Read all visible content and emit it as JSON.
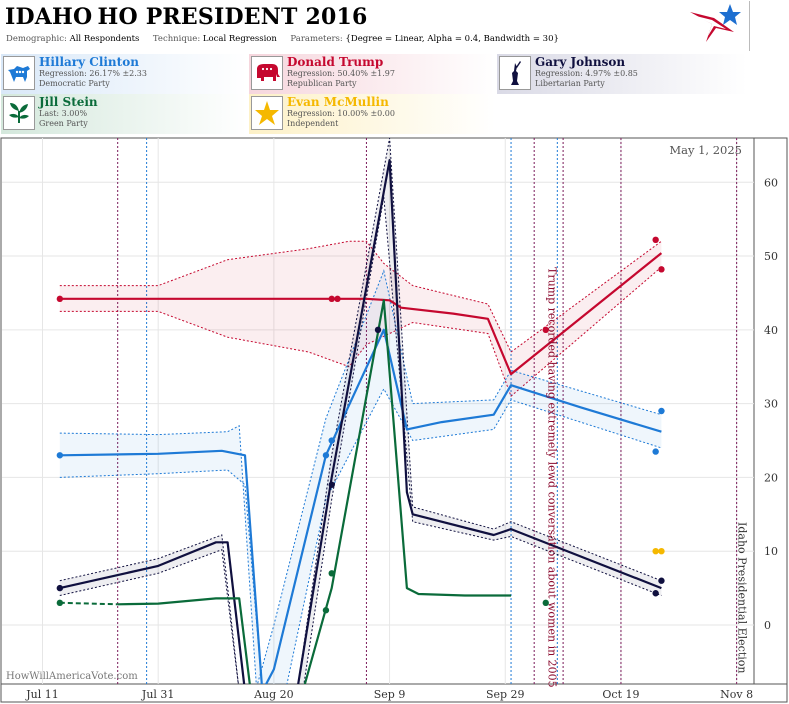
{
  "header": {
    "state": "IDAHO",
    "race": "HO PRESIDENT 2016",
    "demographic_label": "Demographic:",
    "demographic_value": "All Respondents",
    "technique_label": "Technique:",
    "technique_value": "Local Regression",
    "parameters_label": "Parameters:",
    "parameters_value": "{Degree = Linear, Alpha = 0.4, Bandwidth = 30}"
  },
  "candidates": [
    {
      "name": "Hillary Clinton",
      "line1": "Regression: 26.17% ±2.33",
      "line2": "Democratic Party",
      "color": "#1e7ad6",
      "icon": "donkey-icon"
    },
    {
      "name": "Donald Trump",
      "line1": "Regression: 50.40% ±1.97",
      "line2": "Republican Party",
      "color": "#c5082f",
      "icon": "elephant-icon"
    },
    {
      "name": "Gary Johnson",
      "line1": "Regression: 4.97% ±0.85",
      "line2": "Libertarian Party",
      "color": "#10103f",
      "icon": "liberty-statue-icon"
    },
    {
      "name": "Jill Stein",
      "line1": "Last: 3.00%",
      "line2": "Green Party",
      "color": "#0a6b3a",
      "icon": "leaf-icon"
    },
    {
      "name": "Evan McMullin",
      "line1": "Regression: 10.00% ±0.00",
      "line2": "Independent",
      "color": "#f5b800",
      "icon": "star-icon"
    }
  ],
  "chart_data": {
    "type": "line",
    "date_label": "May 1, 2025",
    "watermark": "HowWillAmericaVote.com",
    "x_ticks": [
      "Jul 11",
      "Jul 31",
      "Aug 20",
      "Sep 9",
      "Sep 29",
      "Oct 19",
      "Nov 8"
    ],
    "y_ticks": [
      0,
      10,
      20,
      30,
      40,
      50,
      60
    ],
    "ylim": [
      -8,
      66
    ],
    "xlim": [
      "2016-07-04",
      "2016-11-11"
    ],
    "annotations": [
      {
        "date": "2016-10-07",
        "text": "Trump recorded having extremely lewd conversation about women in 2005"
      },
      {
        "date": "2016-11-08",
        "text": "Idaho Presidential Election"
      }
    ],
    "event_lines_dotted_purple": [
      "2016-07-24",
      "2016-09-05",
      "2016-10-04",
      "2016-10-09",
      "2016-10-19",
      "2016-11-08"
    ],
    "event_lines_dotted_blue": [
      "2016-07-29",
      "2016-09-30",
      "2016-10-08"
    ],
    "series": [
      {
        "name": "Donald Trump",
        "color": "#c5082f",
        "line": [
          [
            "2016-07-14",
            44.2
          ],
          [
            "2016-08-30",
            44.2
          ],
          [
            "2016-09-05",
            44.2
          ],
          [
            "2016-09-09",
            44.0
          ],
          [
            "2016-09-11",
            43.0
          ],
          [
            "2016-09-20",
            42.2
          ],
          [
            "2016-09-26",
            41.5
          ],
          [
            "2016-09-30",
            34.0
          ],
          [
            "2016-10-26",
            50.4
          ]
        ],
        "upper": [
          [
            "2016-07-14",
            46.0
          ],
          [
            "2016-07-31",
            46.0
          ],
          [
            "2016-08-12",
            49.5
          ],
          [
            "2016-08-26",
            51.0
          ],
          [
            "2016-09-02",
            52.0
          ],
          [
            "2016-09-05",
            52.0
          ],
          [
            "2016-09-08",
            49.0
          ],
          [
            "2016-09-13",
            46.0
          ],
          [
            "2016-09-26",
            43.5
          ],
          [
            "2016-09-30",
            37.0
          ],
          [
            "2016-10-26",
            52.0
          ]
        ],
        "lower": [
          [
            "2016-07-14",
            42.5
          ],
          [
            "2016-07-31",
            42.5
          ],
          [
            "2016-08-12",
            39.0
          ],
          [
            "2016-08-26",
            37.0
          ],
          [
            "2016-09-02",
            35.0
          ],
          [
            "2016-09-05",
            38.0
          ],
          [
            "2016-09-13",
            41.0
          ],
          [
            "2016-09-26",
            39.5
          ],
          [
            "2016-09-30",
            31.0
          ],
          [
            "2016-10-26",
            48.5
          ]
        ],
        "points": [
          [
            "2016-07-14",
            44.2
          ],
          [
            "2016-08-30",
            44.2
          ],
          [
            "2016-08-31",
            44.2
          ],
          [
            "2016-10-06",
            40.0
          ],
          [
            "2016-10-25",
            52.2
          ],
          [
            "2016-10-26",
            48.2
          ]
        ]
      },
      {
        "name": "Hillary Clinton",
        "color": "#1e7ad6",
        "line": [
          [
            "2016-07-14",
            23.0
          ],
          [
            "2016-07-31",
            23.2
          ],
          [
            "2016-08-11",
            23.6
          ],
          [
            "2016-08-15",
            23.0
          ],
          [
            "2016-08-18",
            -9.0
          ],
          [
            "2016-08-20",
            -6.0
          ],
          [
            "2016-08-29",
            23.0
          ],
          [
            "2016-09-08",
            40.0
          ],
          [
            "2016-09-12",
            26.5
          ],
          [
            "2016-09-18",
            27.5
          ],
          [
            "2016-09-27",
            28.5
          ],
          [
            "2016-09-30",
            32.5
          ],
          [
            "2016-10-12",
            29.5
          ],
          [
            "2016-10-26",
            26.2
          ]
        ],
        "upper": [
          [
            "2016-07-14",
            26.0
          ],
          [
            "2016-07-31",
            25.8
          ],
          [
            "2016-08-12",
            26.2
          ],
          [
            "2016-08-14",
            27.0
          ],
          [
            "2016-08-17",
            -8.5
          ],
          [
            "2016-08-20",
            0.0
          ],
          [
            "2016-08-29",
            28.0
          ],
          [
            "2016-09-08",
            48.0
          ],
          [
            "2016-09-13",
            30.0
          ],
          [
            "2016-09-27",
            30.5
          ],
          [
            "2016-09-30",
            34.5
          ],
          [
            "2016-10-26",
            28.5
          ]
        ],
        "lower": [
          [
            "2016-07-14",
            20.0
          ],
          [
            "2016-07-31",
            20.5
          ],
          [
            "2016-08-12",
            21.0
          ],
          [
            "2016-08-15",
            19.0
          ],
          [
            "2016-08-18",
            -9.0
          ],
          [
            "2016-08-22",
            -9.0
          ],
          [
            "2016-08-29",
            17.0
          ],
          [
            "2016-09-08",
            32.0
          ],
          [
            "2016-09-13",
            25.0
          ],
          [
            "2016-09-27",
            26.5
          ],
          [
            "2016-09-30",
            30.5
          ],
          [
            "2016-10-26",
            24.0
          ]
        ],
        "points": [
          [
            "2016-07-14",
            23.0
          ],
          [
            "2016-08-29",
            23.0
          ],
          [
            "2016-08-30",
            25.0
          ],
          [
            "2016-10-25",
            23.5
          ],
          [
            "2016-10-26",
            29.0
          ]
        ]
      },
      {
        "name": "Gary Johnson",
        "color": "#10103f",
        "line": [
          [
            "2016-07-14",
            5.0
          ],
          [
            "2016-07-31",
            8.0
          ],
          [
            "2016-08-10",
            11.2
          ],
          [
            "2016-08-12",
            11.2
          ],
          [
            "2016-08-15",
            -9.0
          ],
          [
            "2016-08-24",
            -9.0
          ],
          [
            "2016-08-30",
            20.0
          ],
          [
            "2016-09-09",
            63.0
          ],
          [
            "2016-09-12",
            18.0
          ],
          [
            "2016-09-13",
            15.0
          ],
          [
            "2016-09-27",
            12.2
          ],
          [
            "2016-09-30",
            13.0
          ],
          [
            "2016-10-26",
            5.0
          ]
        ],
        "upper": [
          [
            "2016-07-14",
            6.0
          ],
          [
            "2016-07-31",
            9.0
          ],
          [
            "2016-08-11",
            12.2
          ],
          [
            "2016-08-14",
            -9.0
          ],
          [
            "2016-08-24",
            -9.0
          ],
          [
            "2016-08-30",
            23.0
          ],
          [
            "2016-09-09",
            66.0
          ],
          [
            "2016-09-13",
            16.0
          ],
          [
            "2016-09-27",
            13.0
          ],
          [
            "2016-09-30",
            14.0
          ],
          [
            "2016-10-26",
            6.0
          ]
        ],
        "lower": [
          [
            "2016-07-14",
            4.0
          ],
          [
            "2016-07-31",
            7.0
          ],
          [
            "2016-08-11",
            10.2
          ],
          [
            "2016-08-14",
            -9.0
          ],
          [
            "2016-08-25",
            -9.0
          ],
          [
            "2016-08-30",
            17.0
          ],
          [
            "2016-09-08",
            58.0
          ],
          [
            "2016-09-13",
            14.0
          ],
          [
            "2016-09-27",
            11.5
          ],
          [
            "2016-09-30",
            12.0
          ],
          [
            "2016-10-26",
            4.0
          ]
        ],
        "points": [
          [
            "2016-07-14",
            5.0
          ],
          [
            "2016-08-30",
            19.0
          ],
          [
            "2016-09-07",
            40.0
          ],
          [
            "2016-10-25",
            4.3
          ],
          [
            "2016-10-26",
            6.0
          ]
        ]
      },
      {
        "name": "Jill Stein",
        "color": "#0a6b3a",
        "dashed": [
          [
            "2016-07-14",
            3.0
          ],
          [
            "2016-07-24",
            2.8
          ]
        ],
        "line": [
          [
            "2016-07-24",
            2.8
          ],
          [
            "2016-07-31",
            2.9
          ],
          [
            "2016-08-10",
            3.6
          ],
          [
            "2016-08-14",
            3.6
          ],
          [
            "2016-08-16",
            -9.0
          ],
          [
            "2016-08-25",
            -9.0
          ],
          [
            "2016-08-30",
            5.0
          ],
          [
            "2016-09-08",
            44.0
          ],
          [
            "2016-09-12",
            5.0
          ],
          [
            "2016-09-14",
            4.2
          ],
          [
            "2016-09-22",
            4.0
          ],
          [
            "2016-09-30",
            4.0
          ]
        ],
        "points": [
          [
            "2016-07-14",
            3.0
          ],
          [
            "2016-08-29",
            2.0
          ],
          [
            "2016-08-30",
            7.0
          ],
          [
            "2016-10-06",
            3.0
          ]
        ]
      },
      {
        "name": "Evan McMullin",
        "color": "#f5b800",
        "points": [
          [
            "2016-10-25",
            10.0
          ],
          [
            "2016-10-26",
            10.0
          ]
        ]
      }
    ]
  }
}
